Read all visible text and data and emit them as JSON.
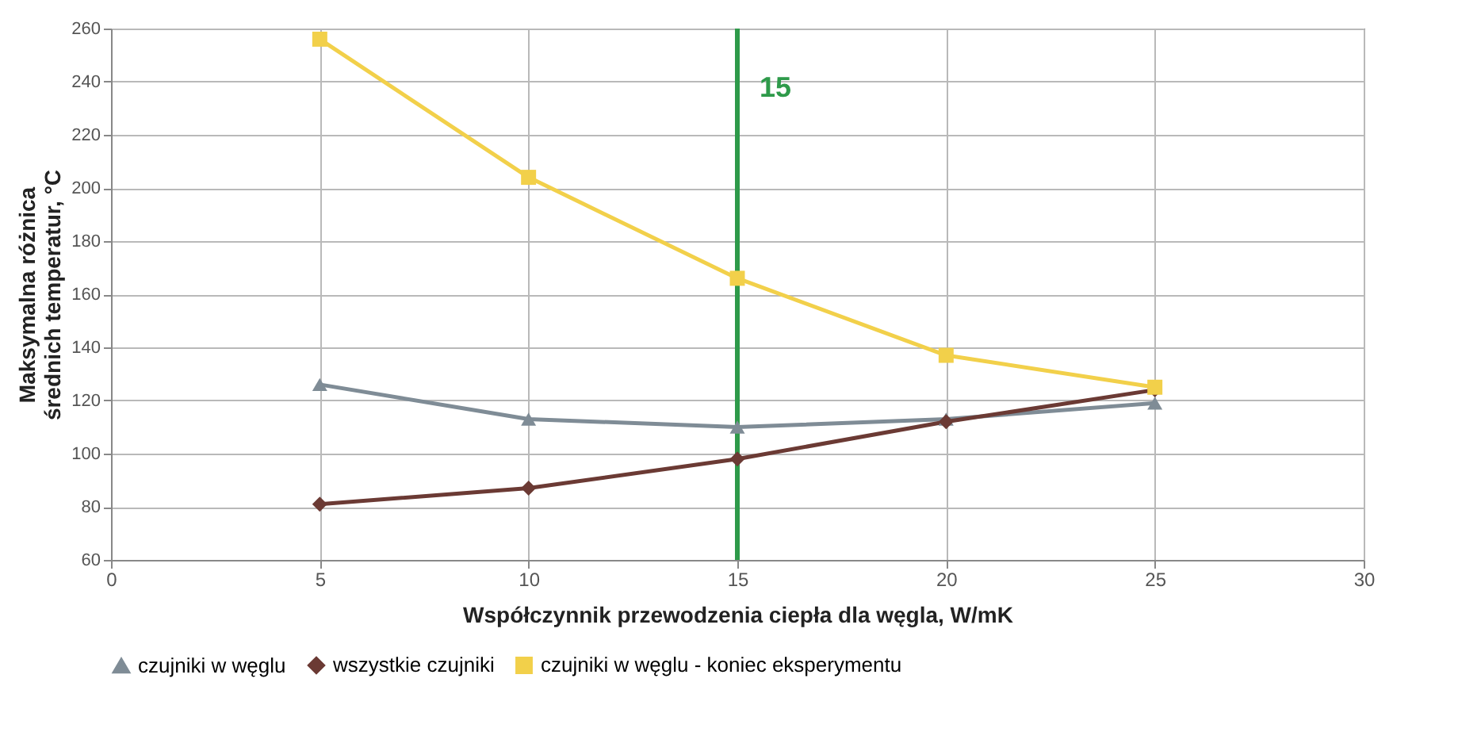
{
  "chart_data": {
    "type": "line",
    "xlabel": "Współczynnik przewodzenia ciepła dla węgla, W/mK",
    "ylabel": "Maksymalna różnica średnich temperatur, °C",
    "x": [
      5,
      10,
      15,
      20,
      25
    ],
    "series": [
      {
        "name": "czujniki w węglu",
        "color": "#7f8c96",
        "marker": "triangle",
        "values": [
          126,
          113,
          110,
          113,
          119
        ]
      },
      {
        "name": "wszystkie czujniki",
        "color": "#6b3a34",
        "marker": "diamond",
        "values": [
          81,
          87,
          98,
          112,
          124
        ]
      },
      {
        "name": "czujniki w węglu - koniec eksperymentu",
        "color": "#f2d04a",
        "marker": "square",
        "values": [
          256,
          204,
          166,
          137,
          125
        ]
      }
    ],
    "xlim": [
      0,
      30
    ],
    "xticks": [
      0,
      5,
      10,
      15,
      20,
      25,
      30
    ],
    "ylim": [
      60,
      260
    ],
    "yticks": [
      60,
      80,
      100,
      120,
      140,
      160,
      180,
      200,
      220,
      240,
      260
    ],
    "grid": true,
    "legend": "bottom",
    "line_style": "solid",
    "ref_lines": [
      {
        "axis": "x",
        "value": 15,
        "label": "15",
        "color": "#2e9a4a"
      }
    ]
  }
}
